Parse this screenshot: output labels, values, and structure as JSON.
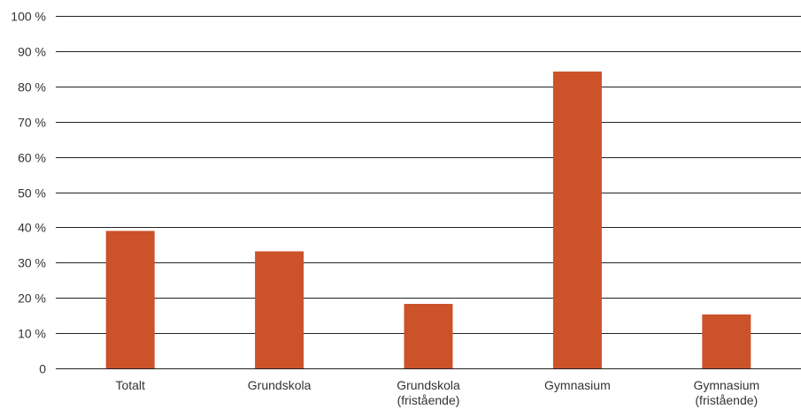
{
  "chart_data": {
    "type": "bar",
    "title": "",
    "xlabel": "",
    "ylabel": "",
    "categories": [
      [
        "Totalt"
      ],
      [
        "Grundskola"
      ],
      [
        "Grundskola",
        "(fristående)"
      ],
      [
        "Gymnasium"
      ],
      [
        "Gymnasium",
        "(fristående)"
      ]
    ],
    "values": [
      39,
      33.2,
      18.3,
      84.2,
      15.3
    ],
    "ylim": [
      0,
      100
    ],
    "yticks": [
      0,
      10,
      20,
      30,
      40,
      50,
      60,
      70,
      80,
      90,
      100
    ],
    "ytick_labels": [
      "0",
      "10 %",
      "20 %",
      "30 %",
      "40 %",
      "50 %",
      "60 %",
      "70 %",
      "80 %",
      "90 %",
      "100 %"
    ],
    "grid": true,
    "legend": "none",
    "bar_color": "#CB5229",
    "grid_color": "#222222",
    "label_color": "#333333"
  }
}
